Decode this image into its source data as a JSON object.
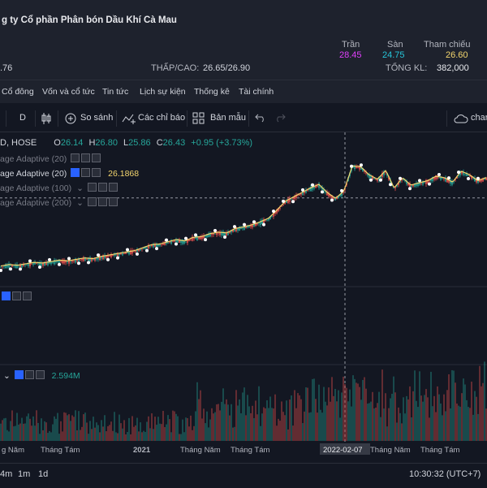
{
  "header": {
    "company": "g ty Cổ phần Phân bón Dầu Khí Cà Mau",
    "left_value": ".76",
    "low_high_label": "THẤP/CAO:",
    "low_high_value": "26.65/26.90",
    "ceiling_label": "Trần",
    "ceiling_value": "28.45",
    "floor_label": "Sàn",
    "floor_value": "24.75",
    "ref_label": "Tham chiếu",
    "ref_value": "26.60",
    "volume_label": "TỔNG KL:",
    "volume_value": "382,000"
  },
  "menu": [
    "Cổ đông",
    "Vốn và cổ tức",
    "Tin tức",
    "Lịch sự kiện",
    "Thống kê",
    "Tài chính"
  ],
  "toolbar": {
    "interval": "D",
    "compare": "So sánh",
    "indicators": "Các chỉ báo",
    "template": "Bản mẫu",
    "right_label": "char"
  },
  "legend": {
    "symbol": "D, HOSE",
    "o_label": "O",
    "o_value": "26.14",
    "h_label": "H",
    "h_value": "26.80",
    "l_label": "L",
    "l_value": "25.86",
    "c_label": "C",
    "c_value": "26.43",
    "change": "+0.95 (+3.73%)"
  },
  "indicators": [
    {
      "name": "age Adaptive (20)",
      "value": ""
    },
    {
      "name": "age Adaptive (20)",
      "value": "26.1868"
    },
    {
      "name": "age Adaptive (100)",
      "value": ""
    },
    {
      "name": "age Adaptive (200)",
      "value": ""
    }
  ],
  "volume_value": "2.594M",
  "time_axis": [
    "g Năm",
    "Tháng Tám",
    "2021",
    "Tháng Năm",
    "Tháng Tám",
    "2022-02-07",
    "Tháng Năm",
    "Tháng Tám"
  ],
  "bottom": {
    "ranges": [
      "4m",
      "1m",
      "1d"
    ],
    "clock": "10:30:32 (UTC+7)"
  },
  "colors": {
    "up": "#26a69a",
    "down": "#ef5350",
    "ma": "#f5d76e",
    "ceiling": "#e040fb",
    "floor": "#26c6da",
    "ref": "#f5d76e",
    "change": "#26a69a"
  },
  "chart_data": {
    "type": "line",
    "series": [
      {
        "values": [
          15.0,
          15.2,
          15.1,
          15.3,
          15.5,
          15.4,
          15.6,
          15.8,
          15.7,
          15.9,
          16.1,
          16.0,
          16.3,
          16.5,
          16.7,
          16.9,
          17.1,
          17.5,
          17.9,
          18.0,
          18.3,
          18.6,
          18.4,
          18.9,
          19.0,
          19.4,
          19.6,
          19.5,
          20.1,
          20.3,
          20.6,
          21.0,
          21.5,
          22.6,
          23.8,
          24.4,
          25.0,
          25.6,
          26.1,
          25.0,
          24.2,
          25.2,
          28.6,
          28.5,
          27.4,
          26.8,
          28.0,
          25.6,
          27.0,
          26.0,
          26.3,
          26.6,
          27.2,
          27.0,
          26.4,
          27.9,
          27.4,
          26.6,
          27.0
        ]
      }
    ],
    "reference_line": 24.4
  }
}
